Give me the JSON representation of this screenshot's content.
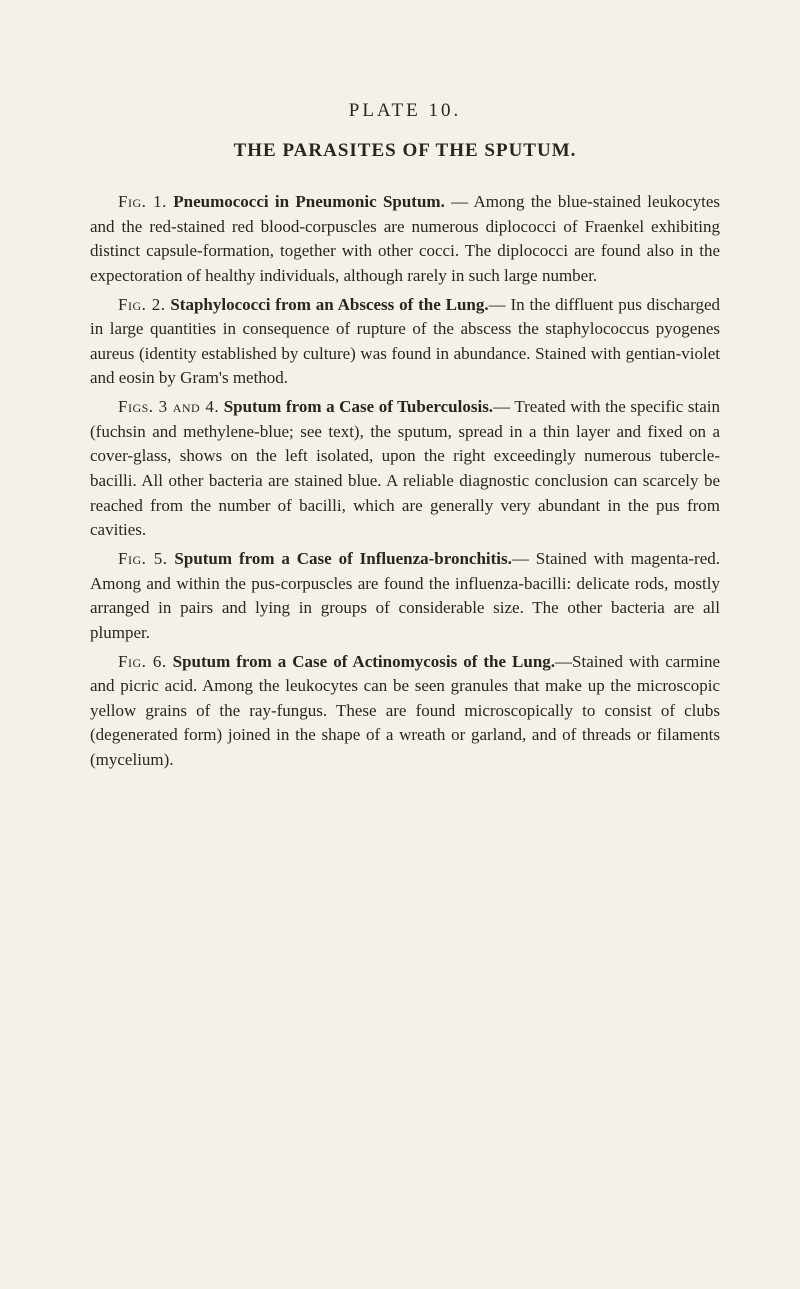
{
  "plate_title": "PLATE 10.",
  "main_title": "THE PARASITES OF THE SPUTUM.",
  "paragraphs": [
    {
      "fig_label": "Fig. 1.",
      "fig_title": "Pneumococci in Pneumonic Sputum.",
      "body": " — Among the blue-stained leukocytes and the red-stained red blood-corpuscles are numerous diplococci of Fraenkel exhibiting distinct capsule-formation, together with other cocci. The diplococci are found also in the expectoration of healthy individuals, although rarely in such large number."
    },
    {
      "fig_label": "Fig. 2.",
      "fig_title": "Staphylococci from an Abscess of the Lung.",
      "body": "— In the diffluent pus discharged in large quantities in consequence of rupture of the abscess the staphylococcus pyogenes aureus (identity established by culture) was found in abundance. Stained with gentian-violet and eosin by Gram's method."
    },
    {
      "fig_label": "Figs. 3 and 4.",
      "fig_title": "Sputum from a Case of Tuberculosis.",
      "body": "— Treated with the specific stain (fuchsin and methylene-blue; see text), the sputum, spread in a thin layer and fixed on a cover-glass, shows on the left isolated, upon the right exceedingly numerous tubercle-bacilli. All other bacteria are stained blue. A reliable diagnostic conclusion can scarcely be reached from the number of bacilli, which are generally very abundant in the pus from cavities."
    },
    {
      "fig_label": "Fig. 5.",
      "fig_title": "Sputum from a Case of Influenza-bronchitis.",
      "body": "— Stained with magenta-red. Among and within the pus-corpuscles are found the influenza-bacilli: delicate rods, mostly arranged in pairs and lying in groups of considerable size. The other bacteria are all plumper."
    },
    {
      "fig_label": "Fig. 6.",
      "fig_title": "Sputum from a Case of Actinomycosis of the Lung.",
      "body": "—Stained with carmine and picric acid. Among the leukocytes can be seen granules that make up the microscopic yellow grains of the ray-fungus. These are found microscopically to consist of clubs (degenerated form) joined in the shape of a wreath or garland, and of threads or filaments (mycelium)."
    }
  ]
}
